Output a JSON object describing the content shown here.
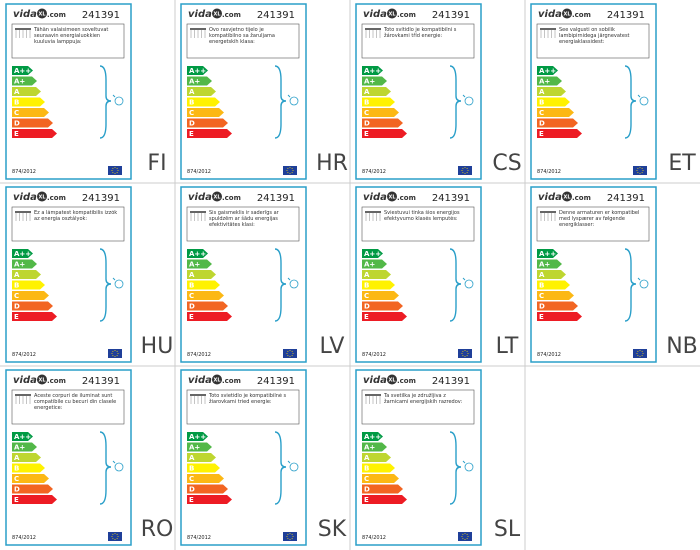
{
  "brand": {
    "prefix": "vida",
    "badge": "XL",
    "suffix": ".com"
  },
  "model": "241391",
  "classes": [
    "A++",
    "A+",
    "A",
    "B",
    "C",
    "D",
    "E"
  ],
  "regulation": "874/2012",
  "labels": [
    {
      "lang": "FI",
      "description": "Tähän valaisimeen soveltuvat seuraavin energialuokkien kuuluvia lamppuja:"
    },
    {
      "lang": "HR",
      "description": "Ovo rasvjetno tijelo je kompatibilno sa žaruljama energetskih klasa:"
    },
    {
      "lang": "CS",
      "description": "Toto svítidlo je kompatibilní s žárovkami tříd energie:"
    },
    {
      "lang": "ET",
      "description": "See valgusti on sobilik lambipirnidega järgnevatest energiaklassidest:"
    },
    {
      "lang": "HU",
      "description": "Ez a lámpatest kompatibilis izzók az energia osztályok:"
    },
    {
      "lang": "LV",
      "description": "Šis gaismeklis ir saderīgs ar spuldzēm ar šādu energijas efektivitātes klasi:"
    },
    {
      "lang": "LT",
      "description": "Šviestuvui tinka šios energijos efektyvumo klasės lemputės:"
    },
    {
      "lang": "NB",
      "description": "Denne armaturen er kompatibel med lyspærer av følgende energiklasser:"
    },
    {
      "lang": "RO",
      "description": "Aceste corpuri de iluminat sunt compatibile cu becuri din clasele energetice:"
    },
    {
      "lang": "SK",
      "description": "Toto svietidlo je kompatibilné s žiarovkami tried energie:"
    },
    {
      "lang": "SL",
      "description": "Ta svetilka je združljiva z žarnicami energijskih razredov:"
    }
  ]
}
